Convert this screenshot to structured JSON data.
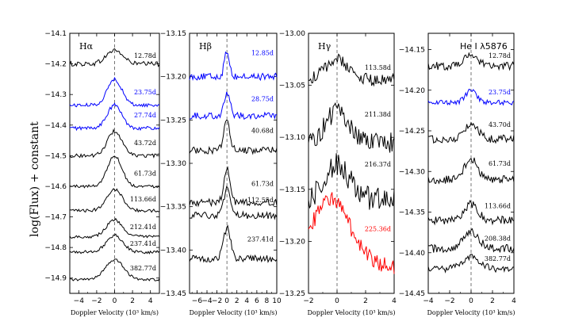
{
  "figure": {
    "ylabel": "log(Flux) + constant"
  },
  "chart_data": [
    {
      "type": "line",
      "title": "Hα",
      "xlabel": "Doppler Velocity (10³ km/s)",
      "ylabel": "log(Flux) + constant",
      "xlim": [
        -5,
        5
      ],
      "ylim": [
        -14.95,
        -14.1
      ],
      "xticks": [
        -4,
        -2,
        0,
        2,
        4
      ],
      "yticks": [
        -14.1,
        -14.2,
        -14.3,
        -14.4,
        -14.5,
        -14.6,
        -14.7,
        -14.8,
        -14.9
      ],
      "ytick_labels": [
        "−14.1",
        "−14.2",
        "−14.3",
        "−14.4",
        "−14.5",
        "−14.6",
        "−14.7",
        "−14.8",
        "−14.9"
      ],
      "series": [
        {
          "name": "12.78d",
          "color": "#000000",
          "base": -14.2,
          "amp": 0.045,
          "width": 0.9,
          "noise": 0.008,
          "label_y": -14.18
        },
        {
          "name": "23.75d",
          "color": "#0000ff",
          "base": -14.335,
          "amp": 0.085,
          "width": 0.8,
          "noise": 0.006,
          "label_y": -14.3
        },
        {
          "name": "27.74d",
          "color": "#0000ff",
          "base": -14.41,
          "amp": 0.075,
          "width": 0.8,
          "noise": 0.006,
          "label_y": -14.375
        },
        {
          "name": "43.72d",
          "color": "#000000",
          "base": -14.5,
          "amp": 0.08,
          "width": 0.8,
          "noise": 0.006,
          "label_y": -14.465
        },
        {
          "name": "61.73d",
          "color": "#000000",
          "base": -14.6,
          "amp": 0.1,
          "width": 0.8,
          "noise": 0.005,
          "label_y": -14.565
        },
        {
          "name": "113.66d",
          "color": "#000000",
          "base": -14.68,
          "amp": 0.07,
          "width": 0.9,
          "noise": 0.005,
          "label_y": -14.65
        },
        {
          "name": "212.41d",
          "color": "#000000",
          "base": -14.765,
          "amp": 0.055,
          "width": 0.9,
          "noise": 0.005,
          "label_y": -14.74
        },
        {
          "name": "237.41d",
          "color": "#000000",
          "base": -14.815,
          "amp": 0.055,
          "width": 0.9,
          "noise": 0.005,
          "label_y": -14.795
        },
        {
          "name": "382.77d",
          "color": "#000000",
          "base": -14.905,
          "amp": 0.065,
          "width": 1.0,
          "noise": 0.004,
          "label_y": -14.875
        }
      ]
    },
    {
      "type": "line",
      "title": "Hβ",
      "xlabel": "Doppler Velocity (10³ km/s)",
      "xlim": [
        -7.5,
        10
      ],
      "ylim": [
        -13.45,
        -13.15
      ],
      "xticks": [
        -6,
        -4,
        -2,
        0,
        2,
        4,
        6,
        8,
        10
      ],
      "yticks": [
        -13.15,
        -13.2,
        -13.25,
        -13.3,
        -13.35,
        -13.4,
        -13.45
      ],
      "ytick_labels": [
        "−13.15",
        "−13.20",
        "−13.25",
        "−13.30",
        "−13.35",
        "−13.40",
        "−13.45"
      ],
      "series": [
        {
          "name": "12.85d",
          "color": "#0000ff",
          "base": -13.2,
          "amp": 0.03,
          "width": 0.5,
          "noise": 0.004,
          "label_y": -13.175
        },
        {
          "name": "28.75d",
          "color": "#0000ff",
          "base": -13.245,
          "amp": 0.025,
          "width": 0.6,
          "noise": 0.004,
          "label_y": -13.228
        },
        {
          "name": "40.68d",
          "color": "#000000",
          "base": -13.285,
          "amp": 0.035,
          "width": 0.6,
          "noise": 0.004,
          "label_y": -13.265
        },
        {
          "name": "61.73d",
          "color": "#000000",
          "base": -13.345,
          "amp": 0.04,
          "width": 0.6,
          "noise": 0.004,
          "label_y": -13.326
        },
        {
          "name": "112.55d",
          "color": "#000000",
          "base": -13.36,
          "amp": 0.03,
          "width": 0.6,
          "noise": 0.004,
          "label_y": -13.345
        },
        {
          "name": "237.41d",
          "color": "#000000",
          "base": -13.41,
          "amp": 0.035,
          "width": 0.7,
          "noise": 0.004,
          "label_y": -13.39
        }
      ]
    },
    {
      "type": "line",
      "title": "Hγ",
      "xlabel": "Doppler Velocity (10³ km/s)",
      "xlim": [
        -2,
        4
      ],
      "ylim": [
        -13.25,
        -13.0
      ],
      "xticks": [
        -2,
        0,
        2,
        4
      ],
      "yticks": [
        -13.0,
        -13.05,
        -13.1,
        -13.15,
        -13.2,
        -13.25
      ],
      "ytick_labels": [
        "−13.00",
        "−13.05",
        "−13.10",
        "−13.15",
        "−13.20",
        "−13.25"
      ],
      "series": [
        {
          "name": "113.58d",
          "color": "#000000",
          "base": -13.045,
          "amp": 0.02,
          "width": 0.8,
          "noise": 0.006,
          "label_y": -13.035
        },
        {
          "name": "211.38d",
          "color": "#000000",
          "base": -13.105,
          "amp": 0.03,
          "width": 0.8,
          "noise": 0.01,
          "label_y": -13.08
        },
        {
          "name": "216.37d",
          "color": "#000000",
          "base": -13.16,
          "amp": 0.035,
          "width": 0.8,
          "noise": 0.012,
          "label_y": -13.128
        },
        {
          "name": "225.36d",
          "color": "#ff0000",
          "base": -13.21,
          "amp": 0.05,
          "width": 1.0,
          "noise": 0.008,
          "label_y": -13.19
        }
      ]
    },
    {
      "type": "line",
      "title": "He I λ5876",
      "xlabel": "Doppler Velocity (10³ km/s)",
      "xlim": [
        -4,
        4
      ],
      "ylim": [
        -14.45,
        -14.13
      ],
      "xticks": [
        -4,
        -2,
        0,
        2,
        4
      ],
      "yticks": [
        -14.15,
        -14.2,
        -14.25,
        -14.3,
        -14.35,
        -14.4,
        -14.45
      ],
      "ytick_labels": [
        "−14.15",
        "−14.20",
        "−14.25",
        "−14.30",
        "−14.35",
        "−14.40",
        "−14.45"
      ],
      "series": [
        {
          "name": "12.78d",
          "color": "#000000",
          "base": -14.17,
          "amp": 0.015,
          "width": 0.6,
          "noise": 0.005,
          "label_y": -14.16
        },
        {
          "name": "23.75d",
          "color": "#0000ff",
          "base": -14.215,
          "amp": 0.015,
          "width": 0.5,
          "noise": 0.003,
          "label_y": -14.205
        },
        {
          "name": "43.70d",
          "color": "#000000",
          "base": -14.26,
          "amp": 0.02,
          "width": 0.6,
          "noise": 0.005,
          "label_y": -14.245
        },
        {
          "name": "61.73d",
          "color": "#000000",
          "base": -14.31,
          "amp": 0.025,
          "width": 0.6,
          "noise": 0.005,
          "label_y": -14.293
        },
        {
          "name": "113.66d",
          "color": "#000000",
          "base": -14.36,
          "amp": 0.02,
          "width": 0.6,
          "noise": 0.005,
          "label_y": -14.345
        },
        {
          "name": "208.38d",
          "color": "#000000",
          "base": -14.395,
          "amp": 0.02,
          "width": 0.7,
          "noise": 0.005,
          "label_y": -14.385
        },
        {
          "name": "382.77d",
          "color": "#000000",
          "base": -14.42,
          "amp": 0.015,
          "width": 0.8,
          "noise": 0.004,
          "label_y": -14.41
        }
      ]
    }
  ]
}
